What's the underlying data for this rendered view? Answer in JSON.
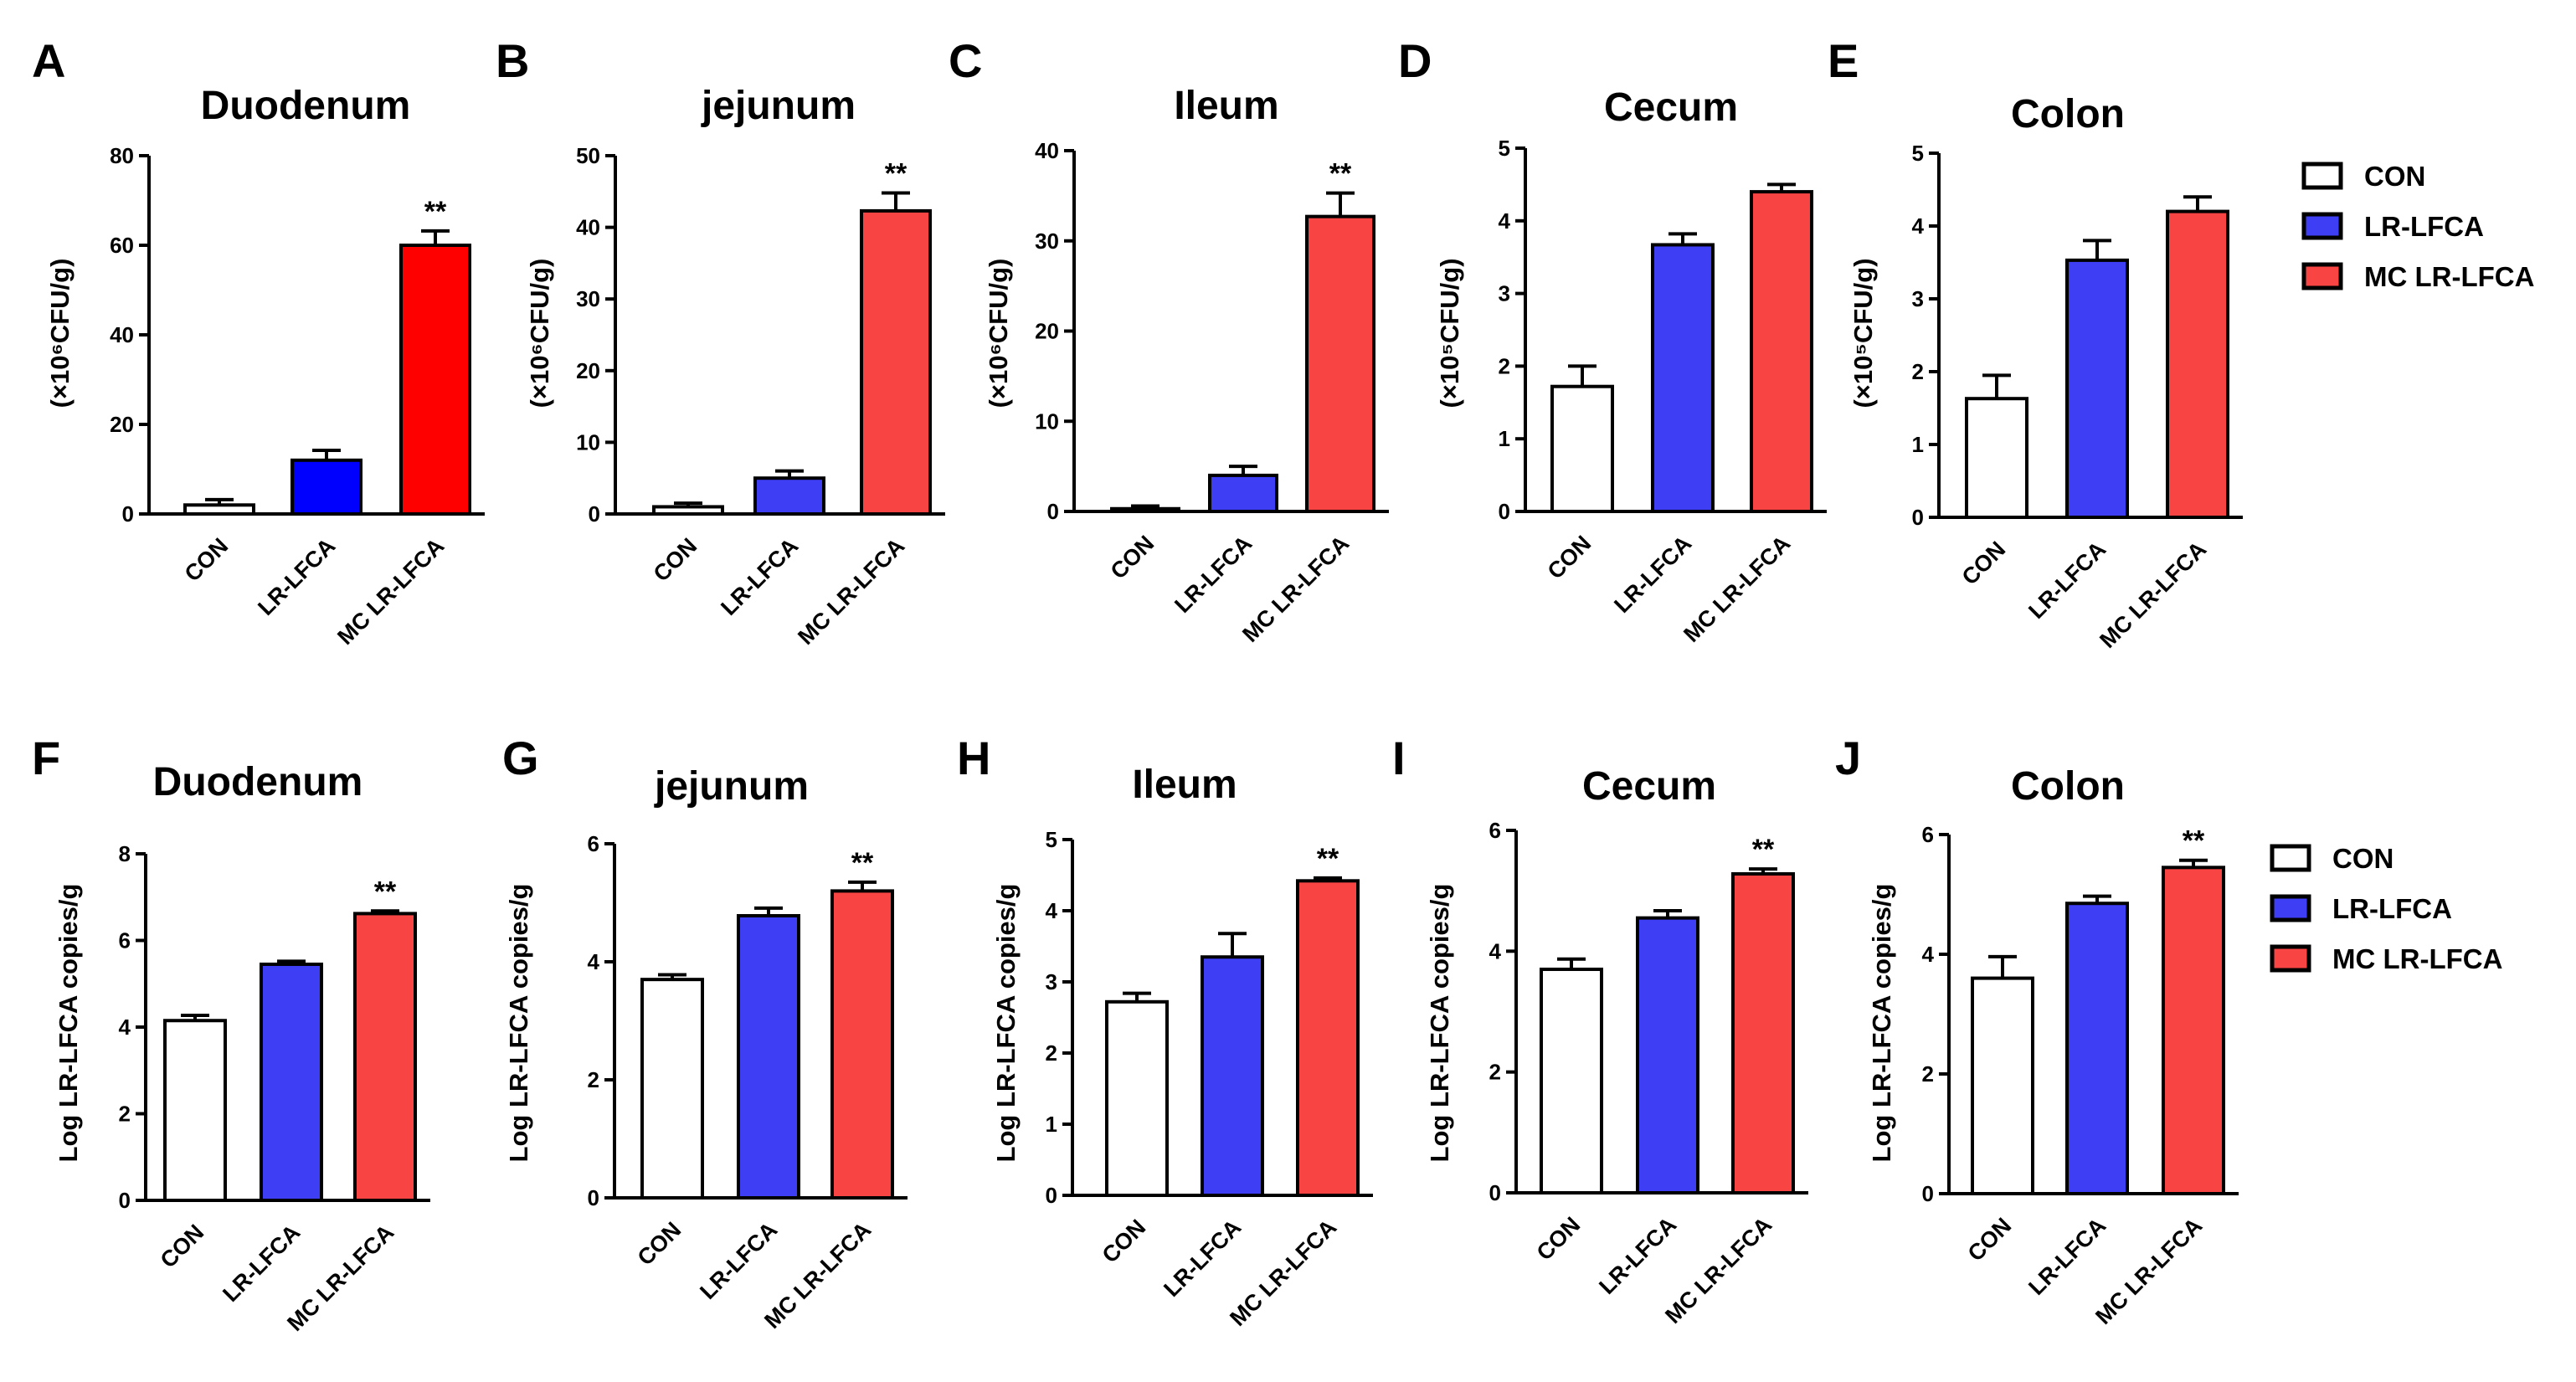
{
  "figure": {
    "categories": [
      "CON",
      "LR-LFCA",
      "MC LR-LFCA"
    ],
    "colors": {
      "CON": "#ffffff",
      "LR-LFCA": "#3e3ef5",
      "MC LR-LFCA": "#f94444",
      "MC LR-LFCA strong": "#ff0000",
      "LR-LFCA strong": "#0000ff",
      "axis": "#000000"
    },
    "legends": [
      {
        "items": [
          "CON",
          "LR-LFCA",
          "MC LR-LFCA"
        ]
      },
      {
        "items": [
          "CON",
          "LR-LFCA",
          "MC LR-LFCA"
        ]
      }
    ]
  },
  "chart_data": [
    {
      "panel": "A",
      "type": "bar",
      "title": "Duodenum",
      "ylabel": "(×10⁶CFU/g)",
      "categories": [
        "CON",
        "LR-LFCA",
        "MC LR-LFCA"
      ],
      "values": [
        2,
        12,
        60
      ],
      "errors": [
        1.2,
        2.2,
        3.2
      ],
      "significance": [
        "",
        "",
        "**"
      ],
      "ylim": [
        0,
        80
      ],
      "yticks": [
        0,
        20,
        40,
        60,
        80
      ],
      "palette": [
        "CON",
        "LR-LFCA strong",
        "MC LR-LFCA strong"
      ]
    },
    {
      "panel": "B",
      "type": "bar",
      "title": "jejunum",
      "ylabel": "(×10⁶CFU/g)",
      "categories": [
        "CON",
        "LR-LFCA",
        "MC LR-LFCA"
      ],
      "values": [
        1,
        5,
        42.3
      ],
      "errors": [
        0.5,
        1.0,
        2.5
      ],
      "significance": [
        "",
        "",
        "**"
      ],
      "ylim": [
        0,
        50
      ],
      "yticks": [
        0,
        10,
        20,
        30,
        40,
        50
      ],
      "palette": [
        "CON",
        "LR-LFCA",
        "MC LR-LFCA"
      ]
    },
    {
      "panel": "C",
      "type": "bar",
      "title": "Ileum",
      "ylabel": "(×10⁶CFU/g)",
      "categories": [
        "CON",
        "LR-LFCA",
        "MC LR-LFCA"
      ],
      "values": [
        0.3,
        4,
        32.7
      ],
      "errors": [
        0.3,
        1.0,
        2.6
      ],
      "significance": [
        "",
        "",
        "**"
      ],
      "ylim": [
        0,
        40
      ],
      "yticks": [
        0,
        10,
        20,
        30,
        40
      ],
      "palette": [
        "CON",
        "LR-LFCA",
        "MC LR-LFCA"
      ]
    },
    {
      "panel": "D",
      "type": "bar",
      "title": "Cecum",
      "ylabel": "(×10⁵CFU/g)",
      "categories": [
        "CON",
        "LR-LFCA",
        "MC LR-LFCA"
      ],
      "values": [
        1.72,
        3.67,
        4.4
      ],
      "errors": [
        0.28,
        0.15,
        0.1
      ],
      "significance": [
        "",
        "",
        ""
      ],
      "ylim": [
        0,
        5
      ],
      "yticks": [
        0,
        1,
        2,
        3,
        4,
        5
      ],
      "palette": [
        "CON",
        "LR-LFCA",
        "MC LR-LFCA"
      ]
    },
    {
      "panel": "E",
      "type": "bar",
      "title": "Colon",
      "ylabel": "(×10⁵CFU/g)",
      "categories": [
        "CON",
        "LR-LFCA",
        "MC LR-LFCA"
      ],
      "values": [
        1.63,
        3.53,
        4.2
      ],
      "errors": [
        0.32,
        0.27,
        0.2
      ],
      "significance": [
        "",
        "",
        ""
      ],
      "ylim": [
        0,
        5
      ],
      "yticks": [
        0,
        1,
        2,
        3,
        4,
        5
      ],
      "palette": [
        "CON",
        "LR-LFCA",
        "MC LR-LFCA"
      ]
    },
    {
      "panel": "F",
      "type": "bar",
      "title": "Duodenum",
      "ylabel": "Log LR-LFCA copies/g",
      "categories": [
        "CON",
        "LR-LFCA",
        "MC LR-LFCA"
      ],
      "values": [
        4.15,
        5.45,
        6.62
      ],
      "errors": [
        0.12,
        0.07,
        0.06
      ],
      "significance": [
        "",
        "",
        "**"
      ],
      "ylim": [
        0,
        8
      ],
      "yticks": [
        0,
        2,
        4,
        6,
        8
      ],
      "palette": [
        "CON",
        "LR-LFCA",
        "MC LR-LFCA"
      ]
    },
    {
      "panel": "G",
      "type": "bar",
      "title": "jejunum",
      "ylabel": "Log LR-LFCA copies/g",
      "categories": [
        "CON",
        "LR-LFCA",
        "MC LR-LFCA"
      ],
      "values": [
        3.7,
        4.78,
        5.2
      ],
      "errors": [
        0.08,
        0.13,
        0.15
      ],
      "significance": [
        "",
        "",
        "**"
      ],
      "ylim": [
        0,
        6
      ],
      "yticks": [
        0,
        2,
        4,
        6
      ],
      "palette": [
        "CON",
        "LR-LFCA",
        "MC LR-LFCA"
      ]
    },
    {
      "panel": "H",
      "type": "bar",
      "title": "Ileum",
      "ylabel": "Log LR-LFCA copies/g",
      "categories": [
        "CON",
        "LR-LFCA",
        "MC LR-LFCA"
      ],
      "values": [
        2.72,
        3.35,
        4.42
      ],
      "errors": [
        0.12,
        0.33,
        0.04
      ],
      "significance": [
        "",
        "",
        "**"
      ],
      "ylim": [
        0,
        5
      ],
      "yticks": [
        0,
        1,
        2,
        3,
        4,
        5
      ],
      "palette": [
        "CON",
        "LR-LFCA",
        "MC LR-LFCA"
      ]
    },
    {
      "panel": "I",
      "type": "bar",
      "title": "Cecum",
      "ylabel": "Log LR-LFCA copies/g",
      "categories": [
        "CON",
        "LR-LFCA",
        "MC LR-LFCA"
      ],
      "values": [
        3.7,
        4.55,
        5.28
      ],
      "errors": [
        0.17,
        0.12,
        0.08
      ],
      "significance": [
        "",
        "",
        "**"
      ],
      "ylim": [
        0,
        6
      ],
      "yticks": [
        0,
        2,
        4,
        6
      ],
      "palette": [
        "CON",
        "LR-LFCA",
        "MC LR-LFCA"
      ]
    },
    {
      "panel": "J",
      "type": "bar",
      "title": "Colon",
      "ylabel": "Log LR-LFCA copies/g",
      "categories": [
        "CON",
        "LR-LFCA",
        "MC LR-LFCA"
      ],
      "values": [
        3.6,
        4.85,
        5.45
      ],
      "errors": [
        0.36,
        0.12,
        0.12
      ],
      "significance": [
        "",
        "",
        "**"
      ],
      "ylim": [
        0,
        6
      ],
      "yticks": [
        0,
        2,
        4,
        6
      ],
      "palette": [
        "CON",
        "LR-LFCA",
        "MC LR-LFCA"
      ]
    }
  ]
}
